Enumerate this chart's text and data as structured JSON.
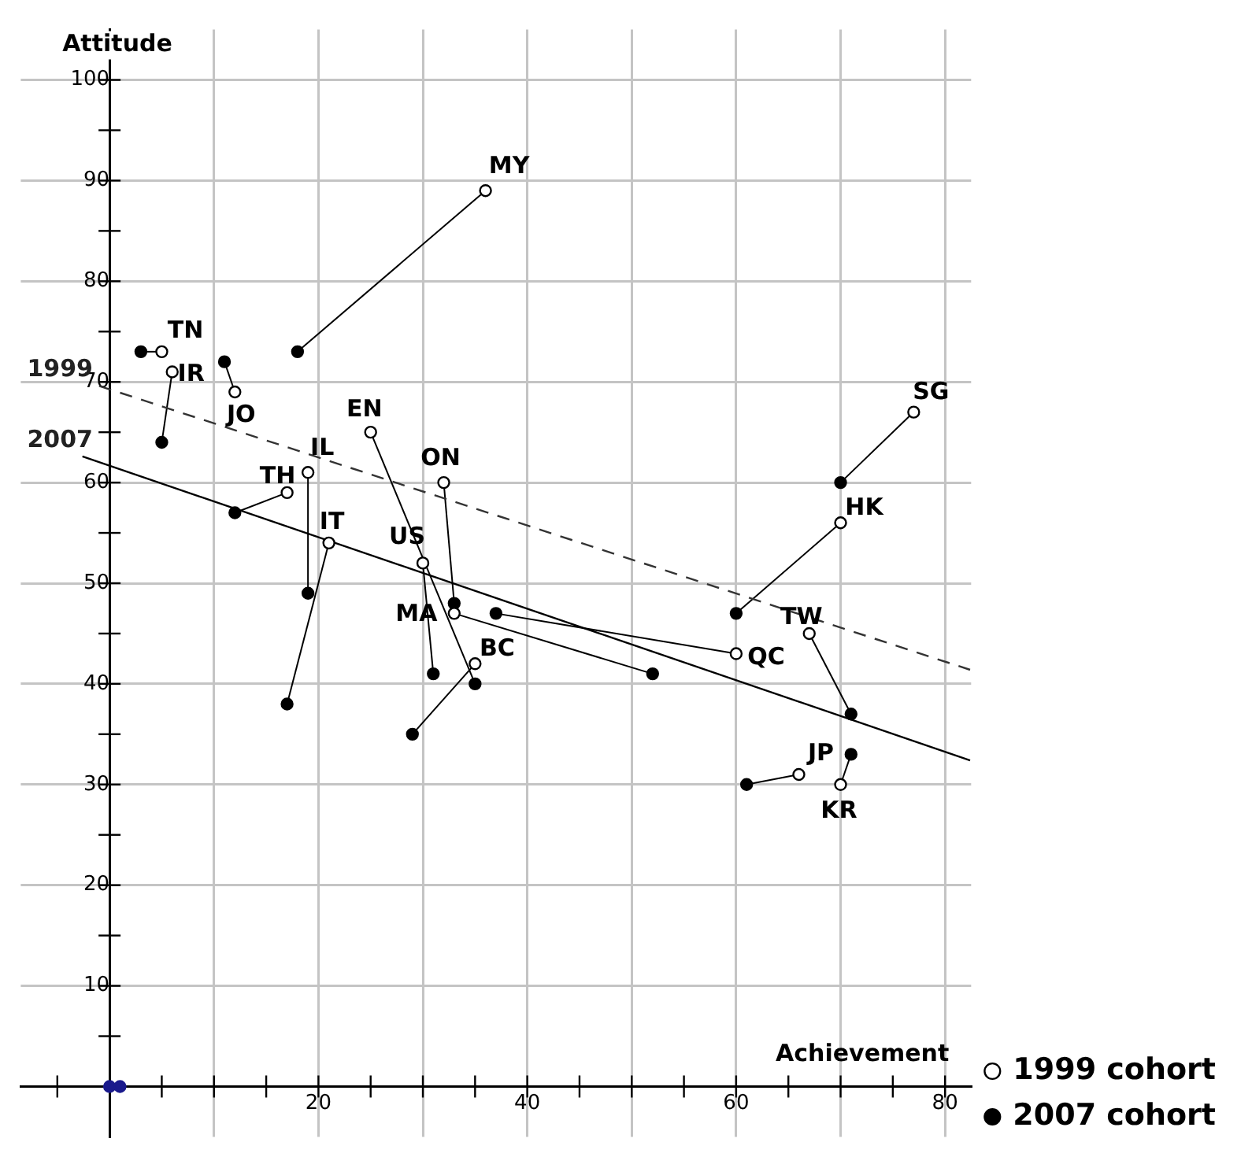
{
  "chart_data": {
    "type": "scatter",
    "xlabel": "Achievement",
    "ylabel": "Attitude",
    "xlim": [
      -8.5,
      82.5
    ],
    "ylim": [
      -5,
      105
    ],
    "xticks": [
      {
        "value": -5,
        "label": null
      },
      {
        "value": 5,
        "label": null
      },
      {
        "value": 10,
        "label": null
      },
      {
        "value": 15,
        "label": null
      },
      20,
      {
        "value": 25,
        "label": null
      },
      {
        "value": 30,
        "label": null
      },
      {
        "value": 35,
        "label": null
      },
      40,
      {
        "value": 45,
        "label": null
      },
      {
        "value": 50,
        "label": null
      },
      {
        "value": 55,
        "label": null
      },
      60,
      {
        "value": 65,
        "label": null
      },
      {
        "value": 70,
        "label": null
      },
      {
        "value": 75,
        "label": null
      },
      80
    ],
    "yticks": [
      {
        "value": 5,
        "label": null
      },
      10,
      {
        "value": 15,
        "label": null
      },
      20,
      {
        "value": 25,
        "label": null
      },
      30,
      {
        "value": 35,
        "label": null
      },
      40,
      {
        "value": 45,
        "label": null
      },
      50,
      {
        "value": 55,
        "label": null
      },
      60,
      {
        "value": 65,
        "label": null
      },
      70,
      {
        "value": 75,
        "label": null
      },
      80,
      {
        "value": 85,
        "label": null
      },
      90,
      {
        "value": 95,
        "label": null
      },
      100
    ],
    "grid": true,
    "legend": "bottom right",
    "series": [
      {
        "name": "1999 cohort",
        "marker": "circle",
        "color": "#ffffff",
        "x": [
          5,
          6,
          12,
          36,
          17,
          19,
          21,
          25,
          32,
          30,
          33,
          35,
          60,
          70,
          77,
          67,
          66,
          70
        ],
        "values": [
          73,
          71,
          69,
          89,
          59,
          61,
          54,
          65,
          60,
          52,
          47,
          42,
          43,
          56,
          67,
          45,
          31,
          30
        ],
        "value_labels": [
          "TN",
          "IR",
          "JO",
          "MY",
          "TH",
          "IL",
          "IT",
          "EN",
          "ON",
          "US",
          "MA",
          "BC",
          "QC",
          "HK",
          "SG",
          "TW",
          "JP",
          "KR"
        ]
      },
      {
        "name": "2007 cohort",
        "marker": "circle",
        "color": "#000000",
        "x": [
          3,
          5,
          11,
          18,
          12,
          19,
          17,
          35,
          33,
          31,
          52,
          29,
          37,
          60,
          70,
          71,
          61,
          71
        ],
        "values": [
          73,
          64,
          72,
          73,
          57,
          49,
          38,
          40,
          48,
          41,
          41,
          35,
          47,
          47,
          60,
          37,
          30,
          33
        ]
      },
      {
        "marker": "circle",
        "color": "#1a1a8c",
        "x": [
          0,
          1
        ],
        "values": [
          0,
          0
        ]
      },
      {
        "name": "1999",
        "type": "line",
        "marker": "none",
        "line_style": "dashed",
        "color": "#333333",
        "x": [
          -1,
          82.4
        ],
        "values": [
          69.6,
          41.4
        ]
      },
      {
        "name": "2007",
        "type": "line",
        "marker": "none",
        "line_style": "solid",
        "color": "#000000",
        "x": [
          -2.6,
          82.4
        ],
        "values": [
          62.6,
          32.4
        ]
      }
    ]
  }
}
